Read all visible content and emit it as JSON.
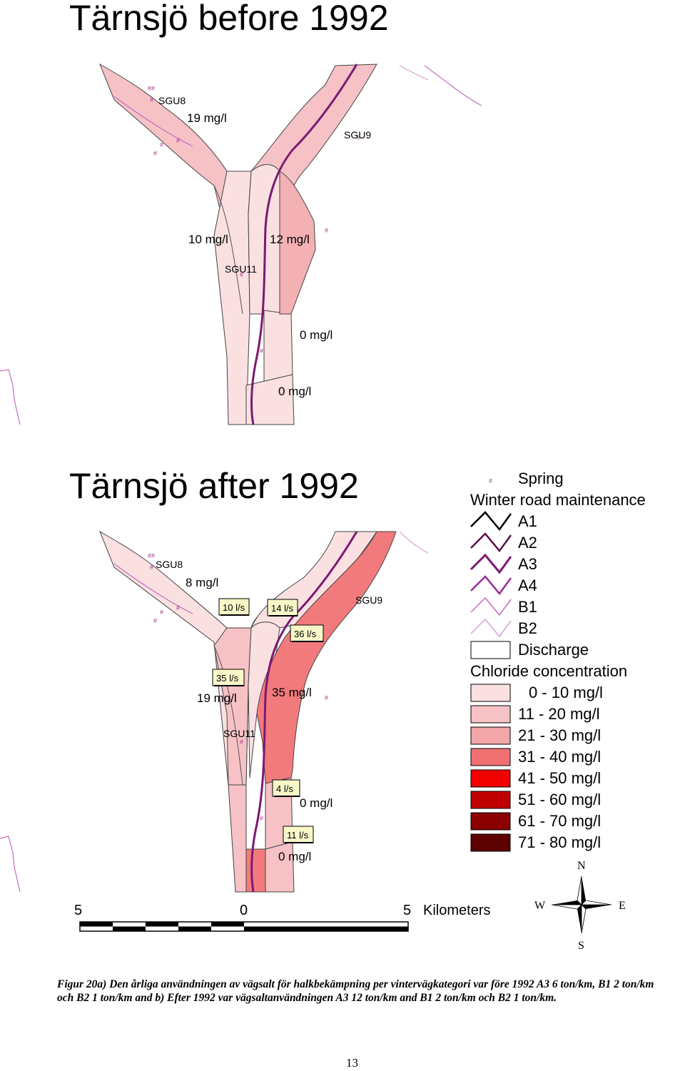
{
  "maps": {
    "before": {
      "title": "Tärnsjö before 1992",
      "wells": [
        "SGU8",
        "SGU9",
        "SGU11"
      ],
      "concentrations": [
        "19 mg/l",
        "10 mg/l",
        "12 mg/l",
        "0 mg/l",
        "0 mg/l"
      ],
      "zone_colors": {
        "z1": "#f6c2c6",
        "z2": "#fae0e1",
        "z3": "#f3b1b4"
      }
    },
    "after": {
      "title": "Tärnsjö after 1992",
      "wells": [
        "SGU8",
        "SGU9",
        "SGU11"
      ],
      "concentrations": [
        "8 mg/l",
        "19 mg/l",
        "35 mg/l",
        "0 mg/l",
        "0 mg/l"
      ],
      "discharges": [
        "10 l/s",
        "14 l/s",
        "36 l/s",
        "35 l/s",
        "4 l/s",
        "11 l/s"
      ],
      "zone_colors": {
        "z1": "#fae0e1",
        "z2": "#f6c2c6",
        "z3": "#f27a7c",
        "z4": "#f3b1b4"
      }
    }
  },
  "legend": {
    "spring": "Spring",
    "winter_title": "Winter road maintenance",
    "roads": [
      {
        "label": "A1",
        "color": "#000000"
      },
      {
        "label": "A2",
        "color": "#5a0f4a"
      },
      {
        "label": "A3",
        "color": "#7a1a72"
      },
      {
        "label": "A4",
        "color": "#9a2a98"
      },
      {
        "label": "B1",
        "color": "#c46cc0"
      },
      {
        "label": "B2",
        "color": "#d9a0d6"
      }
    ],
    "discharge": "Discharge",
    "chloride_title": "Chloride concentration",
    "classes": [
      {
        "label": "0 - 10 mg/l",
        "color": "#fae0e1"
      },
      {
        "label": "11 - 20 mg/l",
        "color": "#f6c2c6"
      },
      {
        "label": "21 - 30 mg/l",
        "color": "#f3a6a8"
      },
      {
        "label": "31 - 40 mg/l",
        "color": "#f07072"
      },
      {
        "label": "41 - 50 mg/l",
        "color": "#f20000"
      },
      {
        "label": "51 - 60 mg/l",
        "color": "#c00000"
      },
      {
        "label": "61 - 70 mg/l",
        "color": "#8a0000"
      },
      {
        "label": "71 - 80 mg/l",
        "color": "#5c0000"
      }
    ]
  },
  "scale": {
    "left": "5",
    "mid": "0",
    "right": "5",
    "unit": "Kilometers"
  },
  "compass": {
    "n": "N",
    "s": "S",
    "e": "E",
    "w": "W"
  },
  "caption": "Figur 20a) Den årliga användningen av vägsalt för halkbekämpning per vintervägkategori var före 1992 A3 6 ton/km, B1 2 ton/km och B2 1 ton/km and b) Efter  1992 var vägsaltanvändningen A3 12 ton/km and B1 2 ton/km och B2 1 ton/km.",
  "page_number": "13"
}
